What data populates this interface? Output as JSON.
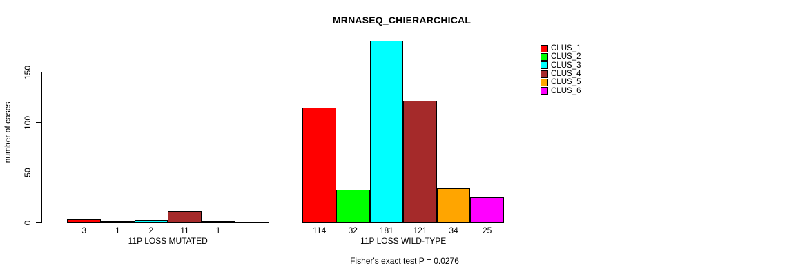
{
  "title": "MRNASEQ_CHIERARCHICAL",
  "y_axis": {
    "label": "number of cases",
    "tick_labels": [
      "0",
      "50",
      "100",
      "150"
    ]
  },
  "caption": "Fisher's exact test P = 0.0276",
  "legend": {
    "position": "right",
    "items": [
      {
        "label": "CLUS_1",
        "color": "#FF0000"
      },
      {
        "label": "CLUS_2",
        "color": "#00FF00"
      },
      {
        "label": "CLUS_3",
        "color": "#00FFFF"
      },
      {
        "label": "CLUS_4",
        "color": "#A52A2A"
      },
      {
        "label": "CLUS_5",
        "color": "#FFA500"
      },
      {
        "label": "CLUS_6",
        "color": "#FF00FF"
      }
    ]
  },
  "chart_data": {
    "type": "bar",
    "title": "MRNASEQ_CHIERARCHICAL",
    "xlabel": "",
    "ylabel": "number of cases",
    "yticks": [
      0,
      50,
      100,
      150
    ],
    "ylim": [
      0,
      185
    ],
    "grid": false,
    "legend_position": "right",
    "series_labels": [
      "CLUS_1",
      "CLUS_2",
      "CLUS_3",
      "CLUS_4",
      "CLUS_5",
      "CLUS_6"
    ],
    "series_colors": [
      "#FF0000",
      "#00FF00",
      "#00FFFF",
      "#A52A2A",
      "#FFA500",
      "#FF00FF"
    ],
    "groups": [
      {
        "label": "11P LOSS MUTATED",
        "values": [
          3,
          1,
          2,
          11,
          1,
          0
        ],
        "value_labels": [
          "3",
          "1",
          "2",
          "11",
          "1",
          ""
        ]
      },
      {
        "label": "11P LOSS WILD-TYPE",
        "values": [
          114,
          32,
          181,
          121,
          34,
          25
        ],
        "value_labels": [
          "114",
          "32",
          "181",
          "121",
          "34",
          "25"
        ]
      }
    ],
    "annotation": "Fisher's exact test P = 0.0276"
  }
}
